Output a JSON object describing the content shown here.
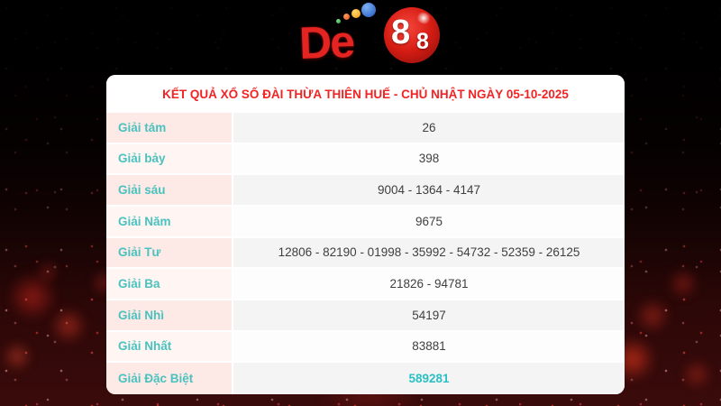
{
  "logo": {
    "text": "De",
    "ball_digit_large": "8",
    "ball_digit_small": "8",
    "colors": {
      "brand_red": "#e32420",
      "ball_red": "#d71d14",
      "dot_green": "#2f9e3f",
      "dot_orange": "#e2521a",
      "dot_yellow": "#f09b1d",
      "dot_blue": "#2256c0"
    }
  },
  "card": {
    "title": "KẾT QUẢ XỔ SỐ ĐÀI THỪA THIÊN HUẾ - CHỦ NHẬT NGÀY 05-10-2025",
    "title_color": "#f02424",
    "label_color": "#4ac2bf",
    "special_value_color": "#2cc0c4"
  },
  "table": {
    "rows": [
      {
        "label": "Giải tám",
        "value": "26"
      },
      {
        "label": "Giải bảy",
        "value": "398"
      },
      {
        "label": "Giải sáu",
        "value": "9004 - 1364 - 4147"
      },
      {
        "label": "Giải Năm",
        "value": "9675"
      },
      {
        "label": "Giải Tư",
        "value": "12806 - 82190 - 01998 - 35992 - 54732 - 52359 - 26125"
      },
      {
        "label": "Giải Ba",
        "value": "21826 - 94781"
      },
      {
        "label": "Giải Nhì",
        "value": "54197"
      },
      {
        "label": "Giải Nhất",
        "value": "83881"
      },
      {
        "label": "Giải Đặc Biệt",
        "value": "589281"
      }
    ]
  }
}
